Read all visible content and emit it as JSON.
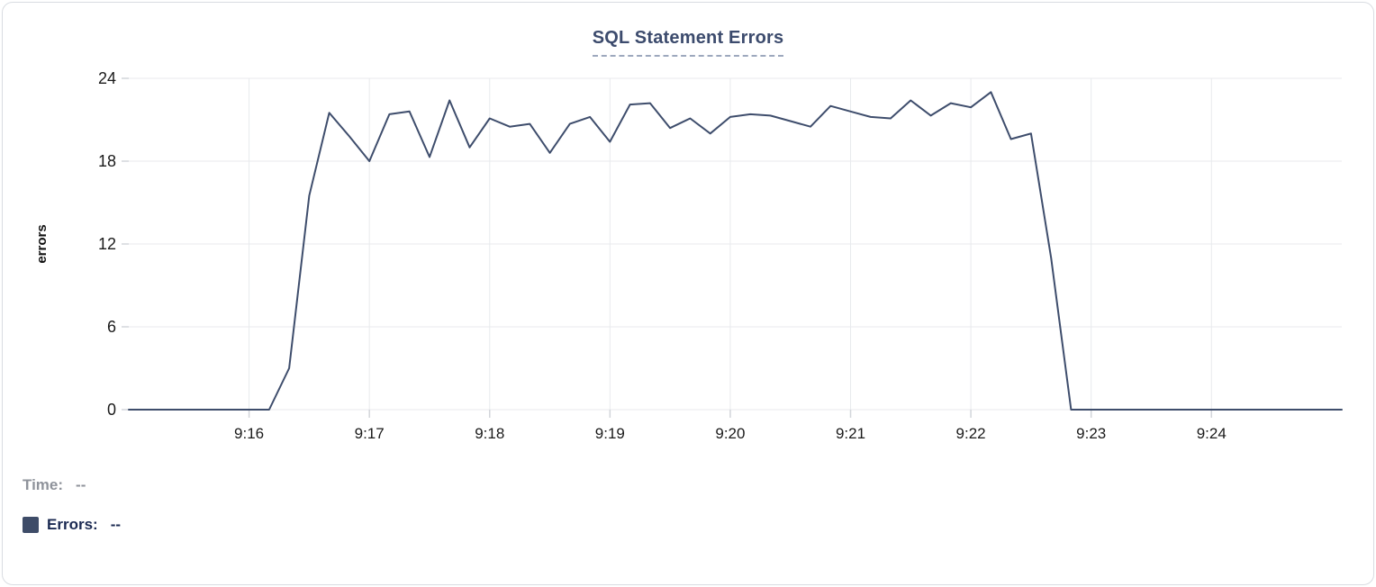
{
  "chart": {
    "title": "SQL Statement Errors"
  },
  "chart_data": {
    "type": "line",
    "title": "SQL Statement Errors",
    "xlabel": "",
    "ylabel": "errors",
    "ylim": [
      0,
      24
    ],
    "yticks": [
      0,
      6,
      12,
      18,
      24
    ],
    "xticks": [
      "9:16",
      "9:17",
      "9:18",
      "9:19",
      "9:20",
      "9:21",
      "9:22",
      "9:23",
      "9:24"
    ],
    "x_domain": [
      "9:15:00",
      "9:25:05"
    ],
    "grid": true,
    "legend_position": "none",
    "series": [
      {
        "name": "Errors",
        "color": "#3e4d6c",
        "x": [
          "9:15:00",
          "9:15:10",
          "9:15:20",
          "9:15:30",
          "9:15:40",
          "9:15:50",
          "9:16:00",
          "9:16:10",
          "9:16:20",
          "9:16:30",
          "9:16:40",
          "9:16:50",
          "9:17:00",
          "9:17:10",
          "9:17:20",
          "9:17:30",
          "9:17:40",
          "9:17:50",
          "9:18:00",
          "9:18:10",
          "9:18:20",
          "9:18:30",
          "9:18:40",
          "9:18:50",
          "9:19:00",
          "9:19:10",
          "9:19:20",
          "9:19:30",
          "9:19:40",
          "9:19:50",
          "9:20:00",
          "9:20:10",
          "9:20:20",
          "9:20:30",
          "9:20:40",
          "9:20:50",
          "9:21:00",
          "9:21:10",
          "9:21:20",
          "9:21:30",
          "9:21:40",
          "9:21:50",
          "9:22:00",
          "9:22:10",
          "9:22:20",
          "9:22:30",
          "9:22:40",
          "9:22:50",
          "9:23:00",
          "9:23:10",
          "9:23:20",
          "9:23:30",
          "9:23:40",
          "9:23:50",
          "9:24:00",
          "9:24:10",
          "9:24:20",
          "9:24:30",
          "9:24:40",
          "9:24:50",
          "9:25:00",
          "9:25:05"
        ],
        "values": [
          0,
          0,
          0,
          0,
          0,
          0,
          0,
          0,
          3,
          15.5,
          21.5,
          19.8,
          18,
          21.4,
          21.6,
          18.3,
          22.4,
          19,
          21.1,
          20.5,
          20.7,
          18.6,
          20.7,
          21.2,
          19.4,
          22.1,
          22.2,
          20.4,
          21.1,
          20,
          21.2,
          21.4,
          21.3,
          20.9,
          20.5,
          22,
          21.6,
          21.2,
          21.1,
          22.4,
          21.3,
          22.2,
          21.9,
          23,
          19.6,
          20,
          11,
          0,
          0,
          0,
          0,
          0,
          0,
          0,
          0,
          0,
          0,
          0,
          0,
          0,
          0,
          0
        ]
      }
    ]
  },
  "readout": {
    "time_label": "Time:",
    "time_value": "--",
    "errors_label": "Errors:",
    "errors_value": "--"
  },
  "colors": {
    "line": "#3e4d6c",
    "swatch": "#3e4c68",
    "title": "#3c4b6d",
    "grid": "#e8eaed",
    "time_label": "#8f939b",
    "errors_label": "#1b2a52"
  }
}
